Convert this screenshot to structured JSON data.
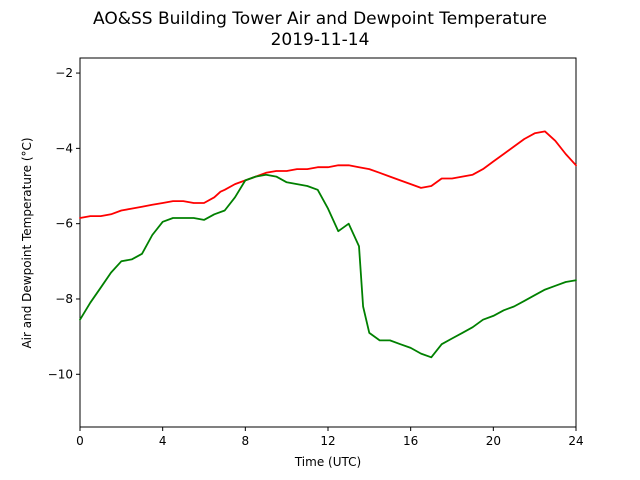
{
  "chart_data": {
    "type": "line",
    "title": "AO&SS Building Tower Air and Dewpoint Temperature",
    "subtitle": "2019-11-14",
    "xlabel": "Time (UTC)",
    "ylabel": "Air and Dewpoint Temperature (°C)",
    "xlim": [
      0,
      24
    ],
    "ylim": [
      -11.4,
      -1.6
    ],
    "xticks": [
      0,
      4,
      8,
      12,
      16,
      20,
      24
    ],
    "yticks": [
      -10,
      -8,
      -6,
      -4,
      -2
    ],
    "xtick_labels": [
      "0",
      "4",
      "8",
      "12",
      "16",
      "20",
      "24"
    ],
    "ytick_labels": [
      "−10",
      "−8",
      "−6",
      "−4",
      "−2"
    ],
    "grid": false,
    "legend": "none",
    "series": [
      {
        "color": "#ff0000",
        "x": [
          0,
          0.5,
          1,
          1.5,
          2,
          2.5,
          3,
          3.5,
          4,
          4.5,
          5,
          5.5,
          6,
          6.5,
          6.8,
          7,
          7.5,
          8,
          8.5,
          9,
          9.5,
          10,
          10.5,
          11,
          11.5,
          12,
          12.5,
          13,
          13.5,
          14,
          14.5,
          15,
          15.5,
          16,
          16.5,
          17,
          17.5,
          18,
          18.5,
          19,
          19.5,
          20,
          20.5,
          21,
          21.5,
          22,
          22.5,
          23,
          23.5,
          24
        ],
        "values": [
          -5.85,
          -5.8,
          -5.8,
          -5.75,
          -5.65,
          -5.6,
          -5.55,
          -5.5,
          -5.45,
          -5.4,
          -5.4,
          -5.45,
          -5.45,
          -5.3,
          -5.15,
          -5.1,
          -4.95,
          -4.85,
          -4.75,
          -4.65,
          -4.6,
          -4.6,
          -4.55,
          -4.55,
          -4.5,
          -4.5,
          -4.45,
          -4.45,
          -4.5,
          -4.55,
          -4.65,
          -4.75,
          -4.85,
          -4.95,
          -5.05,
          -5.0,
          -4.8,
          -4.8,
          -4.75,
          -4.7,
          -4.55,
          -4.35,
          -4.15,
          -3.95,
          -3.75,
          -3.6,
          -3.55,
          -3.8,
          -4.15,
          -4.45
        ]
      },
      {
        "color": "#008000",
        "x": [
          0,
          0.5,
          1,
          1.5,
          2,
          2.5,
          3,
          3.5,
          4,
          4.5,
          5,
          5.5,
          6,
          6.5,
          7,
          7.5,
          8,
          8.5,
          9,
          9.5,
          10,
          10.5,
          11,
          11.5,
          12,
          12.5,
          13,
          13.5,
          13.7,
          14,
          14.5,
          15,
          15.5,
          16,
          16.5,
          17,
          17.5,
          18,
          18.5,
          19,
          19.5,
          20,
          20.5,
          21,
          21.5,
          22,
          22.5,
          23,
          23.5,
          24
        ],
        "values": [
          -8.55,
          -8.1,
          -7.7,
          -7.3,
          -7.0,
          -6.95,
          -6.8,
          -6.3,
          -5.95,
          -5.85,
          -5.85,
          -5.85,
          -5.9,
          -5.75,
          -5.65,
          -5.3,
          -4.85,
          -4.75,
          -4.7,
          -4.75,
          -4.9,
          -4.95,
          -5.0,
          -5.1,
          -5.6,
          -6.2,
          -6.0,
          -6.6,
          -8.2,
          -8.9,
          -9.1,
          -9.1,
          -9.2,
          -9.3,
          -9.45,
          -9.55,
          -9.2,
          -9.05,
          -8.9,
          -8.75,
          -8.55,
          -8.45,
          -8.3,
          -8.2,
          -8.05,
          -7.9,
          -7.75,
          -7.65,
          -7.55,
          -7.5
        ]
      }
    ]
  }
}
